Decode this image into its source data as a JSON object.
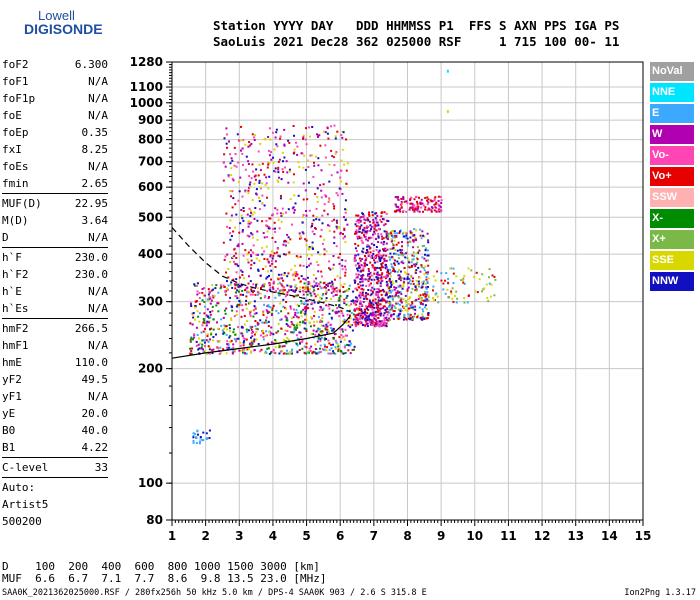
{
  "logo": {
    "top": "Lowell",
    "bottom": "DIGISONDE"
  },
  "header": {
    "line1": "Station YYYY DAY   DDD HHMMSS P1  FFS S AXN PPS IGA PS",
    "line2": "SaoLuis 2021 Dec28 362 025000 RSF     1 715 100 00- 11"
  },
  "params": [
    {
      "label": "foF2",
      "value": "6.300"
    },
    {
      "label": "foF1",
      "value": "N/A"
    },
    {
      "label": "foF1p",
      "value": "N/A"
    },
    {
      "label": "foE",
      "value": "N/A"
    },
    {
      "label": "foEp",
      "value": "0.35"
    },
    {
      "label": "fxI",
      "value": "8.25"
    },
    {
      "label": "foEs",
      "value": "N/A"
    },
    {
      "label": "fmin",
      "value": "2.65"
    },
    {
      "sep": true
    },
    {
      "label": "MUF(D)",
      "value": "22.95"
    },
    {
      "label": "M(D)",
      "value": "3.64"
    },
    {
      "label": "D",
      "value": "N/A"
    },
    {
      "sep": true
    },
    {
      "label": "h`F",
      "value": "230.0"
    },
    {
      "label": "h`F2",
      "value": "230.0"
    },
    {
      "label": "h`E",
      "value": "N/A"
    },
    {
      "label": "h`Es",
      "value": "N/A"
    },
    {
      "sep": true
    },
    {
      "label": "hmF2",
      "value": "266.5"
    },
    {
      "label": "hmF1",
      "value": "N/A"
    },
    {
      "label": "hmE",
      "value": "110.0"
    },
    {
      "label": "yF2",
      "value": "49.5"
    },
    {
      "label": "yF1",
      "value": "N/A"
    },
    {
      "label": "yE",
      "value": "20.0"
    },
    {
      "label": "B0",
      "value": "40.0"
    },
    {
      "label": "B1",
      "value": "4.22"
    },
    {
      "sep": true
    },
    {
      "label": "C-level",
      "value": "33"
    },
    {
      "sep": true
    },
    {
      "text": "Auto:"
    },
    {
      "text": "Artist5"
    },
    {
      "text": "500200"
    }
  ],
  "legend": [
    {
      "label": "NoVal",
      "color": "#a0a0a0"
    },
    {
      "label": "NNE",
      "color": "#00e5ff"
    },
    {
      "label": "E",
      "color": "#3ca9ff"
    },
    {
      "label": "W",
      "color": "#b000b0"
    },
    {
      "label": "Vo-",
      "color": "#ff44b4"
    },
    {
      "label": "Vo+",
      "color": "#e60000"
    },
    {
      "label": "SSW",
      "color": "#ffb0b0"
    },
    {
      "label": "X-",
      "color": "#008c00"
    },
    {
      "label": "X+",
      "color": "#7ab848"
    },
    {
      "label": "SSE",
      "color": "#d8d800"
    },
    {
      "label": "NNW",
      "color": "#1010c0"
    }
  ],
  "bottom": {
    "d_line": "D    100  200  400  600  800 1000 1500 3000 [km]",
    "muf_line": "MUF  6.6  6.7  7.1  7.7  8.6  9.8 13.5 23.0 [MHz]",
    "footer": "SAA0K_2021362025000.RSF / 280fx256h 50 kHz 5.0 km / DPS-4 SAA0K 903 / 2.6 S 315.8 E",
    "version": "Ion2Png 1.3.17"
  },
  "chart_data": {
    "type": "scatter",
    "title": "",
    "xlabel": "",
    "ylabel": "",
    "xlim": [
      1,
      15
    ],
    "ylim": [
      80,
      1280
    ],
    "y_scale": "log",
    "xticks": [
      1,
      2,
      3,
      4,
      5,
      6,
      7,
      8,
      9,
      10,
      11,
      12,
      13,
      14,
      15
    ],
    "yticks": [
      80,
      100,
      200,
      300,
      400,
      500,
      600,
      700,
      800,
      900,
      1000,
      1100,
      1280
    ],
    "grid": true,
    "trace_solid": {
      "x": [
        1.0,
        2.0,
        3.0,
        4.0,
        5.0,
        5.8,
        6.1,
        6.3
      ],
      "y": [
        213,
        220,
        226,
        232,
        240,
        248,
        262,
        275
      ]
    },
    "trace_dashed": {
      "x": [
        1.0,
        1.5,
        2.0,
        2.5,
        3.0,
        3.5,
        4.0,
        4.5,
        5.0,
        5.5,
        6.0,
        6.3
      ],
      "y": [
        470,
        420,
        380,
        350,
        335,
        325,
        318,
        312,
        305,
        298,
        290,
        282
      ]
    },
    "clusters": [
      {
        "name": "o-trace low F",
        "x": [
          1.5,
          6.4
        ],
        "y": [
          220,
          340
        ],
        "colors": [
          "#ff44b4",
          "#e60000",
          "#b000b0",
          "#008c00",
          "#3ca9ff",
          "#1010c0",
          "#d8d800"
        ],
        "n": 900
      },
      {
        "name": "o-trace F2",
        "x": [
          6.4,
          7.4
        ],
        "y": [
          260,
          520
        ],
        "colors": [
          "#e60000",
          "#ff44b4",
          "#b000b0",
          "#1010c0"
        ],
        "n": 650
      },
      {
        "name": "x-trace F2",
        "x": [
          7.4,
          8.6
        ],
        "y": [
          270,
          470
        ],
        "colors": [
          "#3ca9ff",
          "#e60000",
          "#d8d800",
          "#7ab848",
          "#b000b0",
          "#1010c0"
        ],
        "n": 450
      },
      {
        "name": "spread high",
        "x": [
          2.5,
          6.2
        ],
        "y": [
          320,
          880
        ],
        "colors": [
          "#1010c0",
          "#b000b0",
          "#e60000",
          "#ff44b4",
          "#d8d800"
        ],
        "n": 700
      },
      {
        "name": "multihop",
        "x": [
          7.6,
          9.0
        ],
        "y": [
          520,
          570
        ],
        "colors": [
          "#b000b0",
          "#ff44b4",
          "#e60000"
        ],
        "n": 120
      },
      {
        "name": "tail",
        "x": [
          8.5,
          10.6
        ],
        "y": [
          300,
          370
        ],
        "colors": [
          "#d8d800",
          "#7ab848",
          "#3ca9ff",
          "#e60000"
        ],
        "n": 80
      },
      {
        "name": "low echoes",
        "x": [
          1.6,
          2.1
        ],
        "y": [
          128,
          140
        ],
        "colors": [
          "#1010c0",
          "#3ca9ff"
        ],
        "n": 25
      }
    ],
    "streaks": [
      {
        "x": 9.2,
        "y": [
          1200,
          1280
        ],
        "color": "#00e5ff"
      },
      {
        "x": 9.2,
        "y": [
          940,
          960
        ],
        "color": "#d8d800"
      }
    ]
  }
}
